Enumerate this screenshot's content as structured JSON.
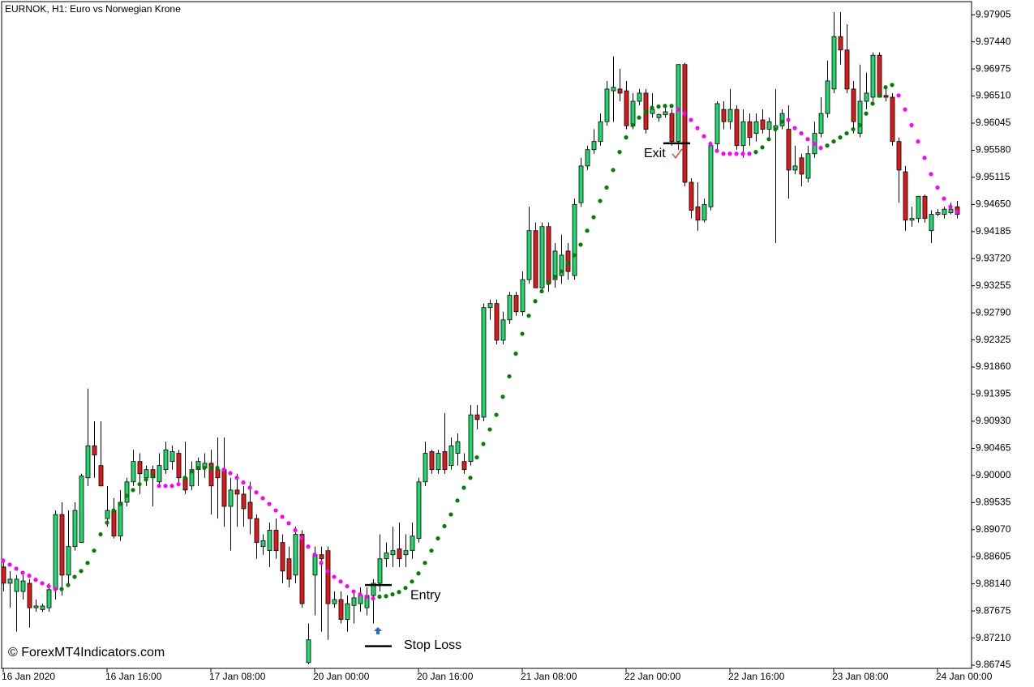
{
  "chart_data": {
    "type": "candlestick",
    "title": "EURNOK, H1:  Euro vs Norwegian Krone",
    "watermark": "© ForexMT4Indicators.com",
    "bull_color": "#22d46c",
    "bear_color": "#dc1a1a",
    "ylim": [
      9.8669,
      9.9813
    ],
    "yticks": [
      9.97905,
      {
        "value": 9.9744,
        "label": "9.97440"
      },
      9.96975,
      {
        "value": 9.9651,
        "label": "9.96510"
      },
      9.96045,
      {
        "value": 9.9558,
        "label": "9.95580"
      },
      9.95115,
      {
        "value": 9.9465,
        "label": "9.94650"
      },
      9.94185,
      {
        "value": 9.9372,
        "label": "9.93720"
      },
      9.93255,
      {
        "value": 9.9279,
        "label": "9.92790"
      },
      9.92325,
      {
        "value": 9.9186,
        "label": "9.91860"
      },
      9.91395,
      {
        "value": 9.9093,
        "label": "9.90930"
      },
      9.90465,
      {
        "value": 9.9,
        "label": "9.90000"
      },
      9.89535,
      {
        "value": 9.8907,
        "label": "9.89070"
      },
      9.88605,
      {
        "value": 9.8814,
        "label": "9.88140"
      },
      9.87675,
      {
        "value": 9.8721,
        "label": "9.87210"
      },
      9.86745
    ],
    "categories": [
      "16 Jan 2020",
      null,
      null,
      null,
      null,
      null,
      null,
      null,
      null,
      null,
      null,
      null,
      null,
      null,
      null,
      null,
      "16 Jan 16:00",
      null,
      null,
      null,
      null,
      null,
      null,
      null,
      null,
      null,
      null,
      null,
      null,
      null,
      null,
      null,
      "17 Jan 08:00",
      null,
      null,
      null,
      null,
      null,
      null,
      null,
      null,
      null,
      null,
      null,
      null,
      null,
      null,
      null,
      "20 Jan 00:00",
      null,
      null,
      null,
      null,
      null,
      null,
      null,
      null,
      null,
      null,
      null,
      null,
      null,
      null,
      null,
      "20 Jan 16:00",
      null,
      null,
      null,
      null,
      null,
      null,
      null,
      null,
      null,
      null,
      null,
      null,
      null,
      null,
      null,
      "21 Jan 08:00",
      null,
      null,
      null,
      null,
      null,
      null,
      null,
      null,
      null,
      null,
      null,
      null,
      null,
      null,
      null,
      "22 Jan 00:00",
      null,
      null,
      null,
      null,
      null,
      null,
      null,
      null,
      null,
      null,
      null,
      null,
      null,
      null,
      null,
      "22 Jan 16:00",
      null,
      null,
      null,
      null,
      null,
      null,
      null,
      null,
      null,
      null,
      null,
      null,
      null,
      null,
      null,
      "23 Jan 08:00",
      null,
      null,
      null,
      null,
      null,
      null,
      null,
      null,
      null,
      null,
      null,
      null,
      null,
      null,
      null,
      "24 Jan 00:00",
      null,
      null,
      null
    ],
    "candles": [
      [
        9.8843,
        9.8857,
        9.8801,
        9.8815
      ],
      [
        9.8815,
        9.8836,
        9.8773,
        9.8822
      ],
      [
        9.8801,
        9.8829,
        9.8732,
        9.8822
      ],
      [
        9.8801,
        9.8829,
        9.8787,
        9.8819
      ],
      [
        9.8815,
        9.8822,
        9.8739,
        9.8773
      ],
      [
        9.8773,
        9.8787,
        9.8766,
        9.8776
      ],
      [
        9.877,
        9.878,
        9.8766,
        9.8776
      ],
      [
        9.8773,
        9.8815,
        9.8766,
        9.8804
      ],
      [
        9.8804,
        9.894,
        9.8787,
        9.8933
      ],
      [
        9.8933,
        9.8954,
        9.8794,
        9.8829
      ],
      [
        9.8829,
        9.894,
        9.8815,
        9.8878
      ],
      [
        9.8878,
        9.8954,
        9.8871,
        9.894
      ],
      [
        9.8885,
        9.9003,
        9.8885,
        9.8999
      ],
      [
        9.8996,
        9.9149,
        9.8982,
        9.9051
      ],
      [
        9.9051,
        9.9093,
        9.8996,
        9.9035
      ],
      [
        9.9017,
        9.9093,
        9.8982,
        9.8982
      ],
      [
        9.8926,
        9.8982,
        9.8912,
        9.894
      ],
      [
        9.894,
        9.8961,
        9.8892,
        9.8896
      ],
      [
        9.8896,
        9.8975,
        9.8888,
        9.8954
      ],
      [
        9.8954,
        9.8996,
        9.8947,
        9.8989
      ],
      [
        9.8989,
        9.9044,
        9.8982,
        9.9024
      ],
      [
        9.9024,
        9.9038,
        9.8968,
        9.9003
      ],
      [
        9.8996,
        9.9017,
        9.8982,
        9.901
      ],
      [
        9.901,
        9.9017,
        9.8947,
        9.8996
      ],
      [
        9.8989,
        9.9038,
        9.8982,
        9.9017
      ],
      [
        9.901,
        9.9058,
        9.9003,
        9.9044
      ],
      [
        9.9024,
        9.9051,
        9.901,
        9.9041
      ],
      [
        9.9038,
        9.9044,
        9.8982,
        9.8996
      ],
      [
        9.8996,
        9.9058,
        9.8968,
        9.8975
      ],
      [
        9.8982,
        9.9024,
        9.8975,
        9.901
      ],
      [
        9.901,
        9.9031,
        9.8982,
        9.9024
      ],
      [
        9.9013,
        9.9038,
        9.8996,
        9.9021
      ],
      [
        9.9021,
        9.9044,
        9.8933,
        9.8982
      ],
      [
        9.901,
        9.9065,
        9.8926,
        9.8996
      ],
      [
        9.901,
        9.9065,
        9.8912,
        9.8947
      ],
      [
        9.8947,
        9.8996,
        9.8871,
        9.8975
      ],
      [
        9.8975,
        9.9003,
        9.8912,
        9.8968
      ],
      [
        9.8968,
        9.8982,
        9.8912,
        9.8943
      ],
      [
        9.8954,
        9.8989,
        9.8899,
        9.8926
      ],
      [
        9.8926,
        9.8933,
        9.8857,
        9.8885
      ],
      [
        9.8878,
        9.8899,
        9.8864,
        9.8888
      ],
      [
        9.8871,
        9.8919,
        9.8843,
        9.8906
      ],
      [
        9.8906,
        9.8926,
        9.8857,
        9.8871
      ],
      [
        9.8885,
        9.8899,
        9.8815,
        9.8836
      ],
      [
        9.8857,
        9.8878,
        9.8808,
        9.8822
      ],
      [
        9.8829,
        9.8912,
        9.8815,
        9.8899
      ],
      [
        9.8899,
        9.8906,
        9.8773,
        9.878
      ],
      [
        9.8679,
        9.8746,
        9.8676,
        9.8718
      ],
      [
        9.8829,
        9.8878,
        9.876,
        9.8864
      ],
      [
        9.8864,
        9.8878,
        9.8732,
        9.8857
      ],
      [
        9.8871,
        9.8878,
        9.8718,
        9.878
      ],
      [
        9.878,
        9.8801,
        9.8773,
        9.8787
      ],
      [
        9.8787,
        9.8801,
        9.8746,
        9.8753
      ],
      [
        9.8753,
        9.8794,
        9.8732,
        9.878
      ],
      [
        9.8777,
        9.8801,
        9.8746,
        9.879
      ],
      [
        9.878,
        9.8808,
        9.8766,
        9.8794
      ],
      [
        9.8773,
        9.8808,
        9.876,
        9.8794
      ],
      [
        9.8794,
        9.8822,
        9.8746,
        9.8815
      ],
      [
        9.8815,
        9.8899,
        9.8801,
        9.8857
      ],
      [
        9.8857,
        9.8885,
        9.8843,
        9.8867
      ],
      [
        9.8864,
        9.8912,
        9.8843,
        9.8871
      ],
      [
        9.8874,
        9.8919,
        9.8843,
        9.8857
      ],
      [
        9.8864,
        9.8899,
        9.8843,
        9.8871
      ],
      [
        9.8871,
        9.8919,
        9.8857,
        9.8896
      ],
      [
        9.8892,
        9.8996,
        9.8885,
        9.8989
      ],
      [
        9.8989,
        9.9058,
        9.8982,
        9.9038
      ],
      [
        9.9041,
        9.9044,
        9.9003,
        9.901
      ],
      [
        9.901,
        9.9044,
        9.9003,
        9.9038
      ],
      [
        9.9041,
        9.9107,
        9.9003,
        9.901
      ],
      [
        9.9017,
        9.9065,
        9.901,
        9.9051
      ],
      [
        9.9038,
        9.9072,
        9.9017,
        9.9058
      ],
      [
        9.9024,
        9.9038,
        9.9003,
        9.901
      ],
      [
        9.9024,
        9.9121,
        9.9017,
        9.9104
      ],
      [
        9.9104,
        9.9121,
        9.9079,
        9.9096
      ],
      [
        9.91,
        9.9295,
        9.9093,
        9.9288
      ],
      [
        9.9288,
        9.9302,
        9.9267,
        9.9295
      ],
      [
        9.9295,
        9.9302,
        9.9225,
        9.9232
      ],
      [
        9.9232,
        9.9281,
        9.9225,
        9.9267
      ],
      [
        9.9267,
        9.9315,
        9.926,
        9.9309
      ],
      [
        9.9309,
        9.9315,
        9.9274,
        9.9281
      ],
      [
        9.9281,
        9.935,
        9.9274,
        9.9336
      ],
      [
        9.9336,
        9.9461,
        9.9329,
        9.942
      ],
      [
        9.942,
        9.9434,
        9.9322,
        9.9322
      ],
      [
        9.9322,
        9.9434,
        9.9315,
        9.9427
      ],
      [
        9.9427,
        9.9434,
        9.9315,
        9.9329
      ],
      [
        9.9336,
        9.9399,
        9.9322,
        9.9385
      ],
      [
        9.9343,
        9.9413,
        9.9329,
        9.9378
      ],
      [
        9.9385,
        9.9399,
        9.9336,
        9.935
      ],
      [
        9.9343,
        9.9475,
        9.9336,
        9.9465
      ],
      [
        9.9468,
        9.9545,
        9.9461,
        9.9531
      ],
      [
        9.9531,
        9.9566,
        9.9524,
        9.9559
      ],
      [
        9.9559,
        9.9594,
        9.9552,
        9.9573
      ],
      [
        9.9573,
        9.9621,
        9.9566,
        9.9607
      ],
      [
        9.9607,
        9.9677,
        9.96,
        9.9663
      ],
      [
        9.966,
        9.9719,
        9.9607,
        9.9666
      ],
      [
        9.9663,
        9.9698,
        9.9642,
        9.9656
      ],
      [
        9.966,
        9.9677,
        9.9594,
        9.96
      ],
      [
        9.96,
        9.9656,
        9.9594,
        9.9642
      ],
      [
        9.9642,
        9.9663,
        9.9635,
        9.9656
      ],
      [
        9.9656,
        9.9663,
        9.9587,
        9.9594
      ],
      [
        9.9621,
        9.9656,
        9.9614,
        9.9628
      ],
      [
        9.9614,
        9.9621,
        9.9607,
        9.9619
      ],
      [
        9.9619,
        9.9635,
        9.9614,
        9.9624
      ],
      [
        9.9621,
        9.9628,
        9.9566,
        9.9573
      ],
      [
        9.9573,
        9.9705,
        9.9559,
        9.9705
      ],
      [
        9.9705,
        9.9708,
        9.9496,
        9.9503
      ],
      [
        9.9503,
        9.951,
        9.9441,
        9.9455
      ],
      [
        9.9461,
        9.9503,
        9.942,
        9.9438
      ],
      [
        9.9438,
        9.9475,
        9.9434,
        9.9465
      ],
      [
        9.9461,
        9.9573,
        9.9455,
        9.9566
      ],
      [
        9.9569,
        9.9642,
        9.9559,
        9.9638
      ],
      [
        9.9628,
        9.9642,
        9.9594,
        9.9607
      ],
      [
        9.9607,
        9.9663,
        9.9594,
        9.9628
      ],
      [
        9.9628,
        9.9635,
        9.9559,
        9.9566
      ],
      [
        9.9566,
        9.9628,
        9.9545,
        9.9607
      ],
      [
        9.9607,
        9.9621,
        9.9566,
        9.958
      ],
      [
        9.9587,
        9.9621,
        9.9573,
        9.9607
      ],
      [
        9.961,
        9.9628,
        9.9587,
        9.9594
      ],
      [
        9.9594,
        9.9614,
        9.958,
        9.9607
      ],
      [
        9.9594,
        9.9663,
        9.9399,
        9.96
      ],
      [
        9.96,
        9.9628,
        9.9594,
        9.9621
      ],
      [
        9.9594,
        9.9635,
        9.9475,
        9.9524
      ],
      [
        9.9524,
        9.9566,
        9.9517,
        9.9531
      ],
      [
        9.9545,
        9.9552,
        9.9496,
        9.9517
      ],
      [
        9.951,
        9.9566,
        9.9503,
        9.9552
      ],
      [
        9.9552,
        9.9607,
        9.9545,
        9.9587
      ],
      [
        9.9587,
        9.9649,
        9.958,
        9.9621
      ],
      [
        9.9621,
        9.9712,
        9.9614,
        9.9677
      ],
      [
        9.9663,
        9.9795,
        9.9656,
        9.9753
      ],
      [
        9.9753,
        9.9795,
        9.9705,
        9.973
      ],
      [
        9.973,
        9.9774,
        9.9656,
        9.9663
      ],
      [
        9.9663,
        9.9677,
        9.9587,
        9.9607
      ],
      [
        9.9587,
        9.9705,
        9.958,
        9.9642
      ],
      [
        9.9642,
        9.9691,
        9.9628,
        9.9656
      ],
      [
        9.9649,
        9.9726,
        9.9642,
        9.9721
      ],
      [
        9.9721,
        9.9726,
        9.9649,
        9.9649
      ],
      [
        9.9652,
        9.9663,
        9.9642,
        9.9649
      ],
      [
        9.9649,
        9.9656,
        9.9566,
        9.9573
      ],
      [
        9.9573,
        9.958,
        9.9468,
        9.9524
      ],
      [
        9.9521,
        9.9531,
        9.942,
        9.9438
      ],
      [
        9.9438,
        9.9461,
        9.9427,
        9.9441
      ],
      [
        9.9441,
        9.9479,
        9.9434,
        9.9479
      ],
      [
        9.9479,
        9.9482,
        9.9434,
        9.9441
      ],
      [
        9.942,
        9.9455,
        9.9399,
        9.9448
      ],
      [
        9.9448,
        9.9457,
        9.9445,
        9.9451
      ],
      [
        9.9448,
        9.9461,
        9.9441,
        9.9457
      ],
      [
        9.9451,
        9.9468,
        9.9448,
        9.9457
      ],
      [
        9.9461,
        9.9471,
        9.9441,
        9.9448
      ]
    ],
    "sar_up": {
      "color": "#008000",
      "values": [
        null,
        null,
        null,
        null,
        null,
        null,
        null,
        null,
        null,
        9.8805,
        9.8812,
        9.8826,
        9.8836,
        9.885,
        9.8871,
        9.8899,
        9.8919,
        9.894,
        9.8951,
        9.8965,
        9.8975,
        9.8985,
        9.8993,
        9.8999,
        null,
        null,
        null,
        null,
        9.8996,
        9.9007,
        9.9013,
        9.9013,
        9.9013,
        9.9013,
        null,
        null,
        null,
        null,
        null,
        null,
        null,
        null,
        null,
        null,
        null,
        null,
        null,
        null,
        null,
        null,
        null,
        null,
        null,
        null,
        null,
        null,
        null,
        null,
        9.8792,
        9.8793,
        9.8796,
        9.88,
        9.8807,
        9.8818,
        9.8832,
        9.885,
        9.8871,
        9.8892,
        9.8913,
        9.8933,
        9.8957,
        9.8979,
        9.8996,
        9.9031,
        9.9054,
        9.9079,
        9.9104,
        9.9135,
        9.917,
        9.9209,
        9.9243,
        9.9274,
        9.9299,
        9.9316,
        9.933,
        9.9341,
        9.935,
        9.9364,
        9.9378,
        9.9396,
        9.942,
        9.9443,
        9.9471,
        9.9494,
        9.9524,
        9.9555,
        9.958,
        9.9601,
        9.9614,
        9.9624,
        9.9631,
        9.9633,
        9.9634,
        9.9634,
        null,
        null,
        null,
        null,
        null,
        null,
        null,
        null,
        null,
        null,
        null,
        null,
        9.9555,
        9.9563,
        9.9577,
        9.9594,
        9.9607,
        null,
        null,
        null,
        null,
        null,
        null,
        9.9566,
        9.9573,
        9.958,
        9.9587,
        9.9594,
        9.9601,
        9.9621,
        9.9638,
        9.9652,
        9.9666,
        9.967,
        null,
        null,
        null,
        null,
        null,
        null,
        null,
        null,
        null,
        null
      ]
    },
    "sar_down": {
      "color": "#ff00ff",
      "values": [
        9.8854,
        9.8847,
        9.884,
        9.8833,
        9.8828,
        9.8821,
        9.8815,
        9.881,
        9.8805,
        null,
        null,
        null,
        null,
        null,
        null,
        null,
        null,
        null,
        null,
        null,
        null,
        null,
        null,
        null,
        9.8982,
        9.8982,
        9.8982,
        9.8985,
        null,
        null,
        null,
        null,
        null,
        null,
        9.901,
        9.9004,
        9.8996,
        9.8988,
        9.8979,
        9.8971,
        9.8961,
        9.8951,
        9.894,
        9.8929,
        9.8918,
        9.8906,
        9.8893,
        9.8878,
        9.8864,
        9.885,
        9.8836,
        9.8826,
        9.8818,
        9.881,
        9.8801,
        9.8796,
        9.8792,
        9.8789,
        null,
        null,
        null,
        null,
        null,
        null,
        null,
        null,
        null,
        null,
        null,
        null,
        null,
        null,
        null,
        null,
        null,
        null,
        null,
        null,
        null,
        null,
        null,
        null,
        null,
        null,
        null,
        null,
        null,
        null,
        null,
        null,
        null,
        null,
        null,
        null,
        null,
        null,
        null,
        null,
        null,
        null,
        null,
        null,
        null,
        null,
        9.9628,
        9.9621,
        9.961,
        9.9596,
        9.9582,
        9.9569,
        9.9557,
        9.9552,
        9.9552,
        9.9552,
        9.9552,
        9.9552,
        null,
        null,
        null,
        null,
        null,
        9.961,
        9.9596,
        9.9587,
        9.9577,
        9.9569,
        9.9562,
        null,
        null,
        null,
        null,
        null,
        null,
        null,
        null,
        null,
        null,
        null,
        9.9652,
        9.9628,
        9.9601,
        9.9573,
        9.9545,
        9.9517,
        9.9494,
        9.9475,
        9.9461,
        9.9452
      ]
    },
    "levels": [
      {
        "label": "Entry",
        "value": 9.8812
      },
      {
        "label": "Stop Loss",
        "value": 9.8707
      },
      {
        "label": "Exit",
        "value": 9.957
      }
    ],
    "signal_arrow": {
      "color": "#1f6fc5",
      "value": 9.8733
    }
  }
}
